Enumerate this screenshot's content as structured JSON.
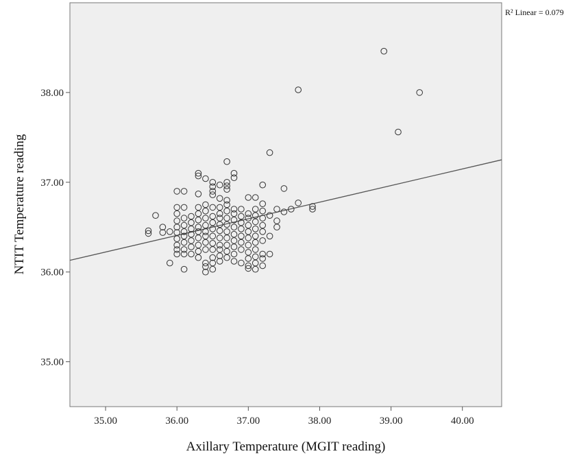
{
  "chart_data": {
    "type": "scatter",
    "title": "",
    "xlabel": "Axillary Temperature (MGIT reading)",
    "ylabel": "NTIT Temperature reading",
    "xlim": [
      34.5,
      40.55
    ],
    "ylim": [
      34.5,
      39.0
    ],
    "x_ticks": [
      "35.00",
      "36.00",
      "37.00",
      "38.00",
      "39.00",
      "40.00"
    ],
    "y_ticks": [
      "35.00",
      "36.00",
      "37.00",
      "38.00"
    ],
    "grid": false,
    "fit_line": {
      "label": "R² Linear = 0.079",
      "x": [
        34.5,
        40.55
      ],
      "y": [
        36.13,
        37.25
      ]
    },
    "series": [
      {
        "points": [
          [
            35.6,
            36.43
          ],
          [
            35.6,
            36.46
          ],
          [
            35.7,
            36.63
          ],
          [
            35.8,
            36.44
          ],
          [
            35.8,
            36.5
          ],
          [
            35.9,
            36.45
          ],
          [
            35.9,
            36.1
          ],
          [
            36.0,
            36.9
          ],
          [
            36.0,
            36.72
          ],
          [
            36.0,
            36.65
          ],
          [
            36.0,
            36.57
          ],
          [
            36.0,
            36.5
          ],
          [
            36.0,
            36.44
          ],
          [
            36.0,
            36.37
          ],
          [
            36.0,
            36.3
          ],
          [
            36.0,
            36.25
          ],
          [
            36.0,
            36.2
          ],
          [
            36.1,
            36.9
          ],
          [
            36.1,
            36.72
          ],
          [
            36.1,
            36.6
          ],
          [
            36.1,
            36.52
          ],
          [
            36.1,
            36.45
          ],
          [
            36.1,
            36.4
          ],
          [
            36.1,
            36.33
          ],
          [
            36.1,
            36.25
          ],
          [
            36.1,
            36.2
          ],
          [
            36.1,
            36.03
          ],
          [
            36.2,
            36.62
          ],
          [
            36.2,
            36.55
          ],
          [
            36.2,
            36.48
          ],
          [
            36.2,
            36.42
          ],
          [
            36.2,
            36.35
          ],
          [
            36.2,
            36.28
          ],
          [
            36.2,
            36.2
          ],
          [
            36.3,
            37.1
          ],
          [
            36.3,
            37.07
          ],
          [
            36.3,
            36.87
          ],
          [
            36.3,
            36.72
          ],
          [
            36.3,
            36.65
          ],
          [
            36.3,
            36.58
          ],
          [
            36.3,
            36.5
          ],
          [
            36.3,
            36.45
          ],
          [
            36.3,
            36.38
          ],
          [
            36.3,
            36.3
          ],
          [
            36.3,
            36.23
          ],
          [
            36.3,
            36.16
          ],
          [
            36.4,
            37.04
          ],
          [
            36.4,
            36.75
          ],
          [
            36.4,
            36.68
          ],
          [
            36.4,
            36.6
          ],
          [
            36.4,
            36.52
          ],
          [
            36.4,
            36.45
          ],
          [
            36.4,
            36.4
          ],
          [
            36.4,
            36.33
          ],
          [
            36.4,
            36.25
          ],
          [
            36.4,
            36.1
          ],
          [
            36.4,
            36.06
          ],
          [
            36.4,
            36.0
          ],
          [
            36.5,
            37.0
          ],
          [
            36.5,
            36.95
          ],
          [
            36.5,
            36.9
          ],
          [
            36.5,
            36.86
          ],
          [
            36.5,
            36.72
          ],
          [
            36.5,
            36.62
          ],
          [
            36.5,
            36.55
          ],
          [
            36.5,
            36.48
          ],
          [
            36.5,
            36.4
          ],
          [
            36.5,
            36.32
          ],
          [
            36.5,
            36.25
          ],
          [
            36.5,
            36.16
          ],
          [
            36.5,
            36.1
          ],
          [
            36.5,
            36.03
          ],
          [
            36.6,
            36.97
          ],
          [
            36.6,
            36.82
          ],
          [
            36.6,
            36.72
          ],
          [
            36.6,
            36.65
          ],
          [
            36.6,
            36.6
          ],
          [
            36.6,
            36.53
          ],
          [
            36.6,
            36.46
          ],
          [
            36.6,
            36.38
          ],
          [
            36.6,
            36.3
          ],
          [
            36.6,
            36.25
          ],
          [
            36.6,
            36.18
          ],
          [
            36.6,
            36.12
          ],
          [
            36.7,
            37.23
          ],
          [
            36.7,
            37.0
          ],
          [
            36.7,
            36.96
          ],
          [
            36.7,
            36.92
          ],
          [
            36.7,
            36.8
          ],
          [
            36.7,
            36.75
          ],
          [
            36.7,
            36.68
          ],
          [
            36.7,
            36.6
          ],
          [
            36.7,
            36.53
          ],
          [
            36.7,
            36.45
          ],
          [
            36.7,
            36.38
          ],
          [
            36.7,
            36.3
          ],
          [
            36.7,
            36.23
          ],
          [
            36.7,
            36.16
          ],
          [
            36.8,
            37.1
          ],
          [
            36.8,
            37.05
          ],
          [
            36.8,
            36.7
          ],
          [
            36.8,
            36.65
          ],
          [
            36.8,
            36.58
          ],
          [
            36.8,
            36.5
          ],
          [
            36.8,
            36.42
          ],
          [
            36.8,
            36.35
          ],
          [
            36.8,
            36.28
          ],
          [
            36.8,
            36.2
          ],
          [
            36.8,
            36.12
          ],
          [
            36.9,
            36.7
          ],
          [
            36.9,
            36.62
          ],
          [
            36.9,
            36.55
          ],
          [
            36.9,
            36.48
          ],
          [
            36.9,
            36.4
          ],
          [
            36.9,
            36.33
          ],
          [
            36.9,
            36.25
          ],
          [
            36.9,
            36.1
          ],
          [
            37.0,
            36.83
          ],
          [
            37.0,
            36.65
          ],
          [
            37.0,
            36.6
          ],
          [
            37.0,
            36.52
          ],
          [
            37.0,
            36.45
          ],
          [
            37.0,
            36.38
          ],
          [
            37.0,
            36.3
          ],
          [
            37.0,
            36.22
          ],
          [
            37.0,
            36.15
          ],
          [
            37.0,
            36.07
          ],
          [
            37.0,
            36.04
          ],
          [
            37.1,
            36.83
          ],
          [
            37.1,
            36.7
          ],
          [
            37.1,
            36.63
          ],
          [
            37.1,
            36.56
          ],
          [
            37.1,
            36.48
          ],
          [
            37.1,
            36.4
          ],
          [
            37.1,
            36.33
          ],
          [
            37.1,
            36.25
          ],
          [
            37.1,
            36.17
          ],
          [
            37.1,
            36.1
          ],
          [
            37.1,
            36.03
          ],
          [
            37.2,
            36.97
          ],
          [
            37.2,
            36.76
          ],
          [
            37.2,
            36.68
          ],
          [
            37.2,
            36.6
          ],
          [
            37.2,
            36.52
          ],
          [
            37.2,
            36.45
          ],
          [
            37.2,
            36.35
          ],
          [
            37.2,
            36.2
          ],
          [
            37.2,
            36.15
          ],
          [
            37.2,
            36.07
          ],
          [
            37.3,
            37.33
          ],
          [
            37.3,
            36.63
          ],
          [
            37.3,
            36.4
          ],
          [
            37.3,
            36.2
          ],
          [
            37.4,
            36.7
          ],
          [
            37.4,
            36.57
          ],
          [
            37.4,
            36.5
          ],
          [
            37.5,
            36.93
          ],
          [
            37.5,
            36.67
          ],
          [
            37.6,
            36.7
          ],
          [
            37.7,
            36.77
          ],
          [
            37.7,
            38.03
          ],
          [
            37.9,
            36.73
          ],
          [
            37.9,
            36.7
          ],
          [
            38.9,
            38.46
          ],
          [
            39.1,
            37.56
          ],
          [
            39.4,
            38.0
          ]
        ]
      }
    ]
  }
}
